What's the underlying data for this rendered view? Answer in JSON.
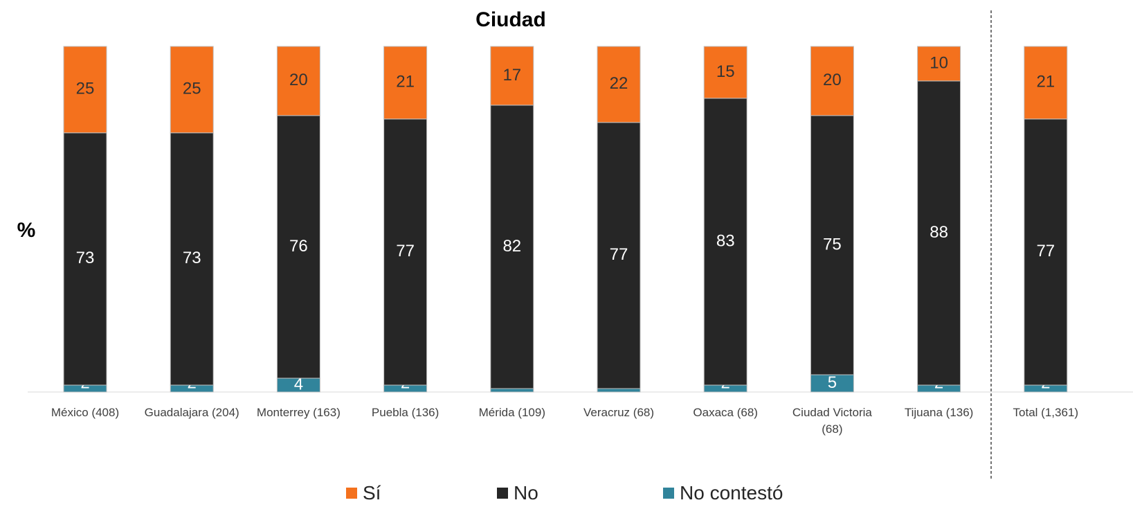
{
  "chart_data": {
    "type": "stacked_bar",
    "title": "Ciudad",
    "y_label": "%",
    "categories": [
      "México (408)",
      "Guadalajara (204)",
      "Monterrey (163)",
      "Puebla (136)",
      "Mérida (109)",
      "Veracruz (68)",
      "Oaxaca (68)",
      "Ciudad Victoria (68)",
      "Tijuana (136)",
      "Total (1,361)"
    ],
    "series": [
      {
        "name": "No contestó",
        "color": "#31849b",
        "values": [
          2,
          2,
          4,
          2,
          1,
          1,
          2,
          5,
          2,
          2
        ]
      },
      {
        "name": "No",
        "color": "#262626",
        "values": [
          73,
          73,
          76,
          77,
          82,
          77,
          83,
          75,
          88,
          77
        ]
      },
      {
        "name": "Sí",
        "color": "#f4711d",
        "values": [
          25,
          25,
          20,
          21,
          17,
          22,
          15,
          20,
          10,
          21
        ]
      }
    ],
    "ylim": [
      0,
      100
    ],
    "legend": "bottom"
  }
}
